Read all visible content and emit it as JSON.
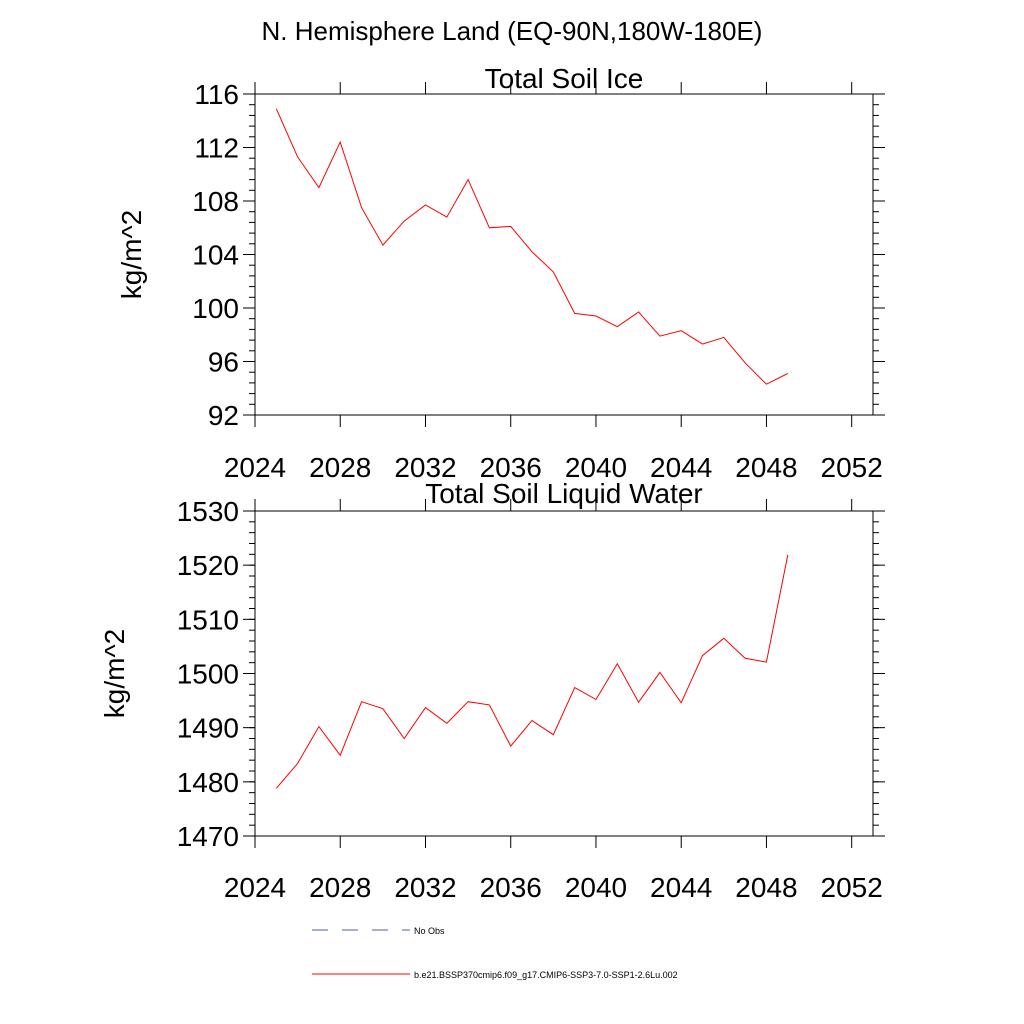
{
  "header": {
    "title": "N. Hemisphere Land (EQ-90N,180W-180E)"
  },
  "chart_data": [
    {
      "type": "line",
      "title": "Total Soil Ice",
      "xlabel": "",
      "ylabel": "kg/m^2",
      "xlim": [
        2024,
        2053
      ],
      "ylim": [
        92,
        116
      ],
      "xticks": [
        2024,
        2028,
        2032,
        2036,
        2040,
        2044,
        2048,
        2052
      ],
      "yticks": [
        92,
        96,
        100,
        104,
        108,
        112,
        116
      ],
      "xtick_labels": [
        "2024",
        "2028",
        "2032",
        "2036",
        "2040",
        "2044",
        "2048",
        "2052"
      ],
      "ytick_labels": [
        "92",
        "96",
        "100",
        "104",
        "108",
        "112",
        "116"
      ],
      "grid": false,
      "series": [
        {
          "name": "b.e21.BSSP370cmip6.f09_g17.CMIP6-SSP3-7.0-SSP1-2.6Lu.002",
          "color": "#ff0000",
          "x": [
            2025,
            2026,
            2027,
            2028,
            2029,
            2030,
            2031,
            2032,
            2033,
            2034,
            2035,
            2036,
            2037,
            2038,
            2039,
            2040,
            2041,
            2042,
            2043,
            2044,
            2045,
            2046,
            2047,
            2048,
            2049
          ],
          "y": [
            114.9,
            111.3,
            109.0,
            112.4,
            107.5,
            104.7,
            106.5,
            107.7,
            106.8,
            109.6,
            106.0,
            106.1,
            104.2,
            102.7,
            99.6,
            99.4,
            98.6,
            99.7,
            97.9,
            98.3,
            97.3,
            97.8,
            95.9,
            94.3,
            95.1
          ]
        }
      ]
    },
    {
      "type": "line",
      "title": "Total Soil Liquid Water",
      "xlabel": "",
      "ylabel": "kg/m^2",
      "xlim": [
        2024,
        2053
      ],
      "ylim": [
        1470,
        1530
      ],
      "xticks": [
        2024,
        2028,
        2032,
        2036,
        2040,
        2044,
        2048,
        2052
      ],
      "yticks": [
        1470,
        1480,
        1490,
        1500,
        1510,
        1520,
        1530
      ],
      "xtick_labels": [
        "2024",
        "2028",
        "2032",
        "2036",
        "2040",
        "2044",
        "2048",
        "2052"
      ],
      "ytick_labels": [
        "1470",
        "1480",
        "1490",
        "1500",
        "1510",
        "1520",
        "1530"
      ],
      "grid": false,
      "series": [
        {
          "name": "b.e21.BSSP370cmip6.f09_g17.CMIP6-SSP3-7.0-SSP1-2.6Lu.002",
          "color": "#ff0000",
          "x": [
            2025,
            2026,
            2027,
            2028,
            2029,
            2030,
            2031,
            2032,
            2033,
            2034,
            2035,
            2036,
            2037,
            2038,
            2039,
            2040,
            2041,
            2042,
            2043,
            2044,
            2045,
            2046,
            2047,
            2048,
            2049
          ],
          "y": [
            1478.8,
            1483.4,
            1490.2,
            1484.9,
            1494.8,
            1493.5,
            1488.0,
            1493.7,
            1490.8,
            1494.8,
            1494.2,
            1486.6,
            1491.3,
            1488.7,
            1497.4,
            1495.2,
            1501.8,
            1494.7,
            1500.2,
            1494.6,
            1503.3,
            1506.5,
            1502.8,
            1502.1,
            1521.9
          ]
        }
      ]
    }
  ],
  "legend": [
    {
      "label": "No Obs",
      "color": "#5060a0",
      "style": "dashed"
    },
    {
      "label": "b.e21.BSSP370cmip6.f09_g17.CMIP6-SSP3-7.0-SSP1-2.6Lu.002",
      "color": "#ff0000",
      "style": "solid"
    }
  ]
}
